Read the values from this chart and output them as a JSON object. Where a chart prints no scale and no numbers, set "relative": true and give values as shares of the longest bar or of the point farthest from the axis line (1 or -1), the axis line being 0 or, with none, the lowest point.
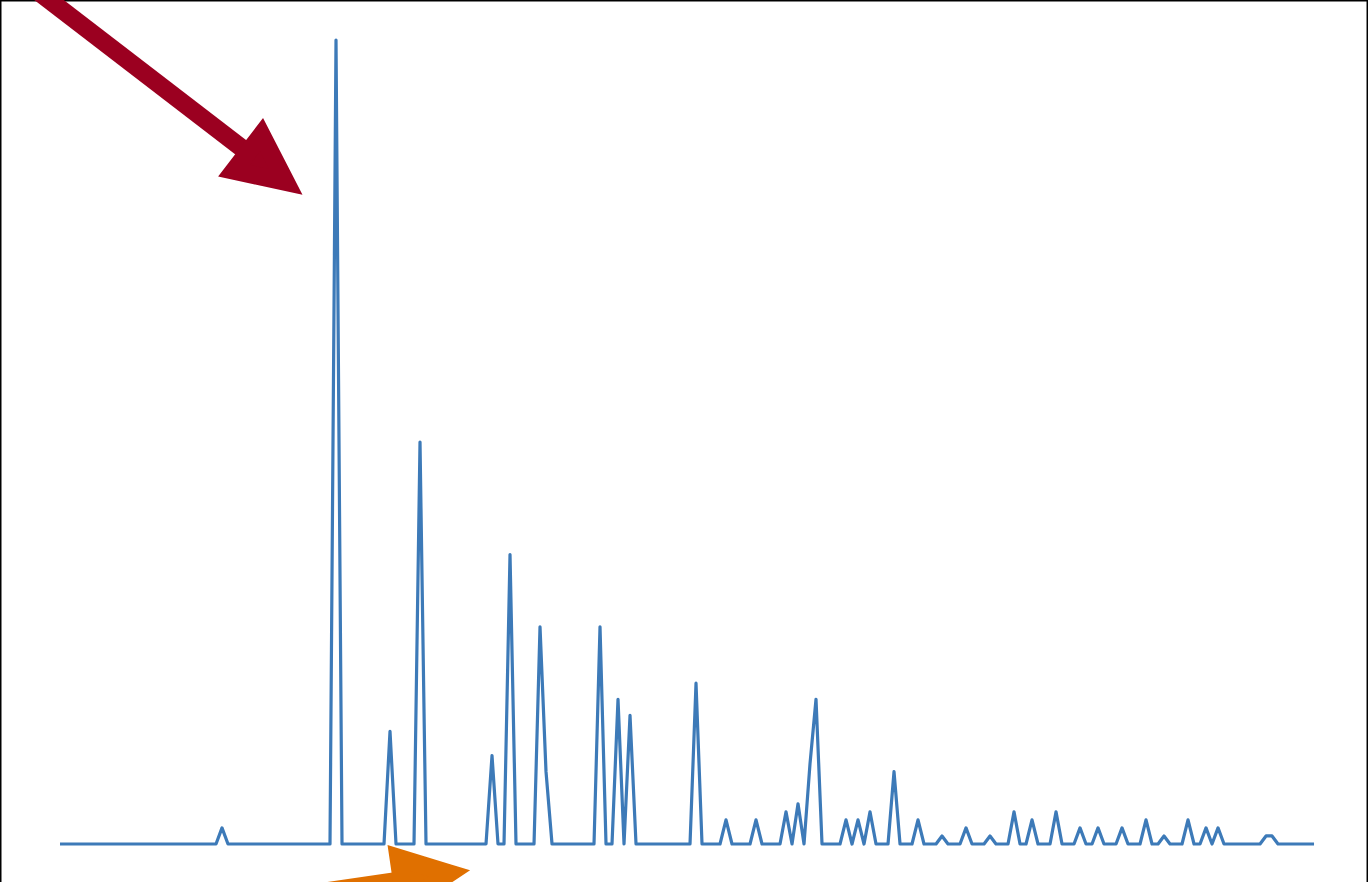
{
  "chart_data": {
    "type": "line",
    "relative": true,
    "color": "#3d7ab8",
    "marker": "none",
    "line_style": "solid",
    "categories": [
      null,
      null,
      null,
      null,
      null,
      null,
      null,
      null,
      null,
      null,
      null,
      null,
      null,
      null,
      null,
      null,
      null,
      null,
      null,
      null,
      null,
      null,
      null,
      null,
      null,
      null,
      null,
      null,
      null,
      null,
      null,
      null,
      null,
      null,
      null,
      null,
      null,
      null,
      null,
      null,
      null,
      null,
      null,
      null,
      null,
      null,
      null,
      null,
      null,
      null,
      null,
      null,
      null,
      null,
      null,
      null,
      null,
      null,
      null,
      null,
      null,
      null,
      null,
      null,
      null,
      null,
      null,
      null,
      null,
      null,
      null,
      null,
      null,
      null,
      null,
      null,
      null,
      null,
      null,
      null,
      null,
      null,
      null,
      null,
      null,
      null,
      null,
      null,
      null,
      null,
      null,
      null,
      null,
      null,
      null,
      null,
      null,
      null,
      null,
      null,
      null,
      null,
      null,
      null,
      null,
      null,
      null,
      null,
      null,
      null,
      null,
      null,
      null,
      null,
      null,
      null,
      null,
      null,
      null,
      null,
      null,
      null,
      null,
      null,
      null,
      null,
      null,
      null,
      null,
      null,
      null,
      null,
      null,
      null,
      null,
      null,
      null,
      null,
      null,
      null,
      null,
      null,
      null,
      null,
      null,
      null,
      null,
      null,
      null,
      null,
      null,
      null,
      null,
      null,
      null,
      null,
      null,
      null,
      null,
      null,
      null,
      null,
      null,
      null,
      null,
      null,
      null,
      null,
      null,
      null,
      null,
      null,
      null,
      null,
      null,
      null,
      null,
      null,
      null,
      null,
      null,
      null,
      null,
      null,
      null,
      null,
      null,
      null,
      null,
      null,
      null,
      null,
      null,
      null,
      null,
      null,
      null,
      null,
      null,
      null,
      null,
      null,
      null,
      null,
      null,
      null,
      null,
      null,
      null,
      null
    ],
    "values": [
      0,
      0,
      0,
      0,
      0,
      0,
      0,
      0,
      0,
      0,
      0,
      0,
      0,
      0,
      0,
      0,
      0,
      0,
      0,
      0,
      0,
      0,
      0,
      0,
      0,
      0,
      0,
      0.02,
      0,
      0,
      0,
      0,
      0,
      0,
      0,
      0,
      0,
      0,
      0,
      0,
      0,
      0,
      0,
      0,
      0,
      0,
      1,
      0,
      0,
      0,
      0,
      0,
      0,
      0,
      0,
      0.14,
      0,
      0,
      0,
      0,
      0.5,
      0,
      0,
      0,
      0,
      0,
      0,
      0,
      0,
      0,
      0,
      0,
      0.11,
      0,
      0,
      0.36,
      0,
      0,
      0,
      0,
      0.27,
      0.09,
      0,
      0,
      0,
      0,
      0,
      0,
      0,
      0,
      0.27,
      0,
      0,
      0.18,
      0,
      0.16,
      0,
      0,
      0,
      0,
      0,
      0,
      0,
      0,
      0,
      0,
      0.2,
      0,
      0,
      0,
      0,
      0.03,
      0,
      0,
      0,
      0,
      0.03,
      0,
      0,
      0,
      0,
      0.04,
      0,
      0.05,
      0,
      0.1,
      0.18,
      0,
      0,
      0,
      0,
      0.03,
      0,
      0.03,
      0,
      0.04,
      0,
      0,
      0,
      0.09,
      0,
      0,
      0,
      0.03,
      0,
      0,
      0,
      0.01,
      0,
      0,
      0,
      0.02,
      0,
      0,
      0,
      0.01,
      0,
      0,
      0,
      0.04,
      0,
      0,
      0.03,
      0,
      0,
      0,
      0.04,
      0,
      0,
      0,
      0.02,
      0,
      0,
      0.02,
      0,
      0,
      0,
      0.02,
      0,
      0,
      0,
      0.03,
      0,
      0,
      0.01,
      0,
      0,
      0,
      0.03,
      0,
      0,
      0.02,
      0,
      0.02,
      0,
      0,
      0,
      0,
      0,
      0,
      0,
      0.01,
      0.01,
      0,
      0,
      0,
      0,
      0,
      0,
      0
    ]
  }
}
